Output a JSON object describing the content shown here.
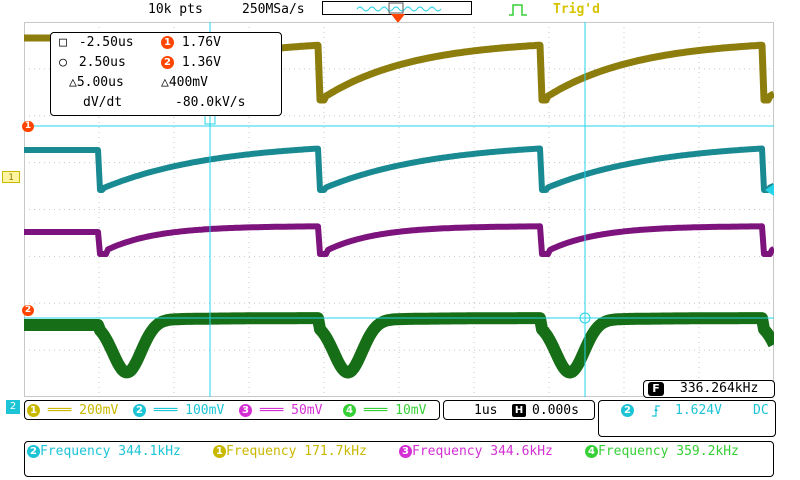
{
  "topbar": {
    "memory_depth": "10k pts",
    "sample_rate": "250MSa/s",
    "trigger_status": "Trig'd"
  },
  "colors": {
    "ch1": "#c9b800",
    "ch1_trace": "#8c7d0c",
    "ch2": "#1cc4d6",
    "ch2_trace": "#1a8a92",
    "ch3": "#d32fd3",
    "ch3_trace": "#7d137d",
    "ch4": "#37d037",
    "ch4_trace": "#166e16",
    "cursor": "#24d4e8",
    "grid": "#c8c8c8",
    "marker_orange": "#ff4500"
  },
  "cursors": {
    "a_time": "-2.50us",
    "a_value": "1.76V",
    "b_time": "2.50us",
    "b_value": "1.36V",
    "delta_time": "5.00us",
    "delta_value": "400mV",
    "dvdt_label": "dV/dt",
    "dvdt_value": "-80.0kV/s"
  },
  "frequency_counter": {
    "icon_label": "F",
    "value": "336.264kHz"
  },
  "channels": [
    {
      "num": "1",
      "scale": "200mV"
    },
    {
      "num": "2",
      "scale": "100mV"
    },
    {
      "num": "3",
      "scale": "50mV"
    },
    {
      "num": "4",
      "scale": "10mV"
    }
  ],
  "horizontal": {
    "timebase": "1us",
    "h_label": "H",
    "position": "0.000s"
  },
  "trigger": {
    "source": "2",
    "level": "1.624V",
    "coupling": "DC"
  },
  "markers": {
    "ch1_ground": "1",
    "ref_a": "1",
    "ref_b": "2",
    "ch2_side": "2"
  },
  "measurements": [
    {
      "ch": "2",
      "text": "Frequency 344.1kHz"
    },
    {
      "ch": "1",
      "text": "Frequency 171.7kHz"
    },
    {
      "ch": "3",
      "text": "Frequency 344.6kHz"
    },
    {
      "ch": "4",
      "text": "Frequency 359.2kHz"
    }
  ]
}
